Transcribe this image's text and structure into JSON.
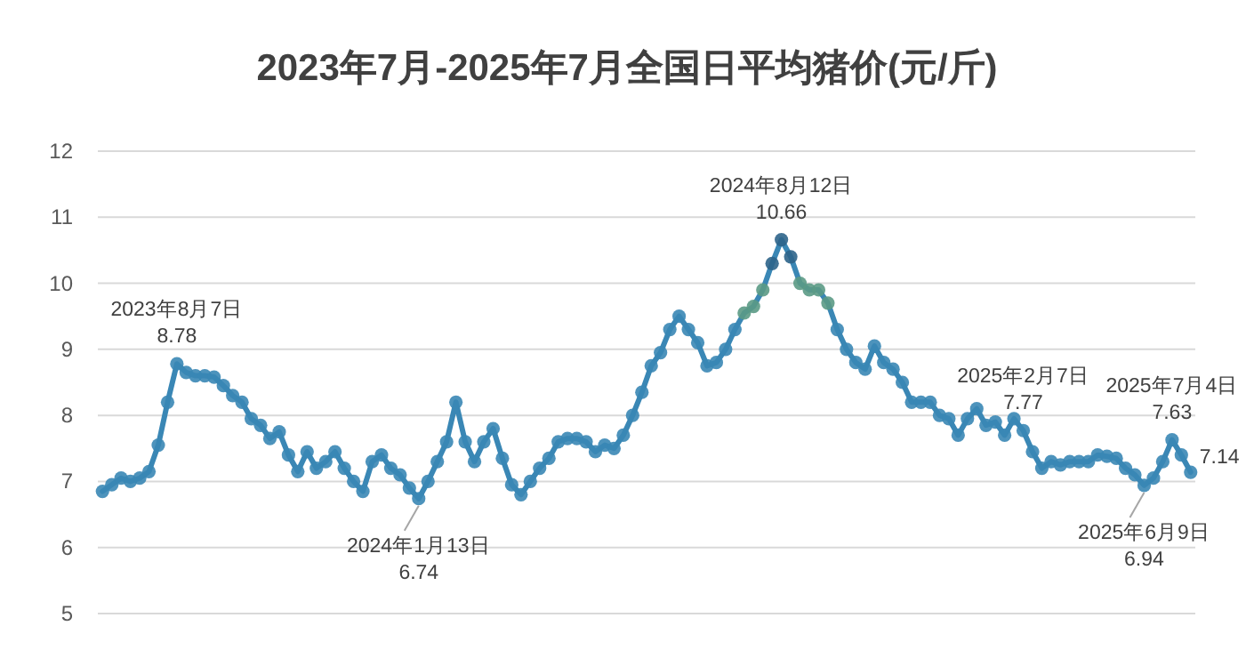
{
  "chart_data": {
    "type": "line",
    "line_style": "solid",
    "title": "2023年7月-2025年7月全国日平均猪价(元/斤)",
    "marker": "circle",
    "grid": "y",
    "tick_labels": "y",
    "categories": [
      null,
      null,
      null,
      null,
      null,
      null,
      null,
      null,
      null,
      null,
      null,
      null,
      null,
      null,
      null,
      null,
      null,
      null,
      null,
      null,
      null,
      null,
      null,
      null,
      null,
      null,
      null,
      null,
      null,
      null,
      null,
      null,
      null,
      null,
      null,
      null,
      null,
      null,
      null,
      null,
      null,
      null,
      null,
      null,
      null,
      null,
      null,
      null,
      null,
      null,
      null,
      null,
      null,
      null,
      null,
      null,
      null,
      null,
      null,
      null,
      null,
      null,
      null,
      null,
      null,
      null,
      null,
      null,
      null,
      null,
      null,
      null,
      null,
      null,
      null,
      null,
      null,
      null,
      null,
      null,
      null,
      null,
      null,
      null,
      null,
      null,
      null,
      null,
      null,
      null,
      null,
      null,
      null,
      null,
      null,
      null,
      null,
      null,
      null,
      null,
      null,
      null,
      null,
      null,
      null,
      null,
      null,
      null,
      null,
      null,
      null,
      null,
      null,
      null,
      null,
      null,
      null,
      null
    ],
    "ylim": [
      5,
      12
    ],
    "yticks": [
      5,
      6,
      7,
      8,
      9,
      10,
      11,
      12
    ],
    "series": [
      {
        "color": "#3a87b5",
        "values": [
          6.85,
          6.95,
          7.05,
          7.0,
          7.05,
          7.15,
          7.55,
          8.2,
          8.78,
          8.65,
          8.6,
          8.6,
          8.58,
          8.45,
          8.3,
          8.2,
          7.95,
          7.85,
          7.65,
          7.75,
          7.4,
          7.15,
          7.45,
          7.2,
          7.3,
          7.45,
          7.2,
          7.0,
          6.85,
          7.3,
          7.4,
          7.2,
          7.1,
          6.9,
          6.74,
          7.0,
          7.3,
          7.6,
          8.2,
          7.6,
          7.3,
          7.6,
          7.8,
          7.35,
          6.95,
          6.8,
          7.0,
          7.2,
          7.35,
          7.6,
          7.65,
          7.65,
          7.6,
          7.45,
          7.55,
          7.5,
          7.7,
          8.0,
          8.35,
          8.75,
          8.95,
          9.3,
          9.5,
          9.3,
          9.1,
          8.75,
          8.8,
          9.0,
          9.3,
          9.55,
          9.65,
          9.9,
          10.3,
          10.66,
          10.4,
          10.0,
          9.9,
          9.9,
          9.7,
          9.3,
          9.0,
          8.8,
          8.7,
          9.05,
          8.8,
          8.7,
          8.5,
          8.2,
          8.2,
          8.2,
          8.0,
          7.95,
          7.7,
          7.95,
          8.1,
          7.85,
          7.9,
          7.7,
          7.95,
          7.77,
          7.45,
          7.2,
          7.3,
          7.25,
          7.3,
          7.3,
          7.3,
          7.4,
          7.38,
          7.35,
          7.2,
          7.1,
          6.94,
          7.05,
          7.3,
          7.63,
          7.4,
          7.14
        ],
        "value_labels": [
          null,
          null,
          null,
          null,
          null,
          null,
          null,
          null,
          null,
          null,
          null,
          null,
          null,
          null,
          null,
          null,
          null,
          null,
          null,
          null,
          null,
          null,
          null,
          null,
          null,
          null,
          null,
          null,
          null,
          null,
          null,
          null,
          null,
          null,
          null,
          null,
          null,
          null,
          null,
          null,
          null,
          null,
          null,
          null,
          null,
          null,
          null,
          null,
          null,
          null,
          null,
          null,
          null,
          null,
          null,
          null,
          null,
          null,
          null,
          null,
          null,
          null,
          null,
          null,
          null,
          null,
          null,
          null,
          null,
          null,
          null,
          null,
          null,
          null,
          null,
          null,
          null,
          null,
          null,
          null,
          null,
          null,
          null,
          null,
          null,
          null,
          null,
          null,
          null,
          null,
          null,
          null,
          null,
          null,
          null,
          null,
          null,
          null,
          null,
          null,
          null,
          null,
          null,
          null,
          null,
          null,
          null,
          null,
          null,
          null,
          null,
          null,
          null,
          null,
          null,
          null,
          null,
          "7.14"
        ],
        "colors": [
          "#3a87b5",
          "#3a87b5",
          "#3a87b5",
          "#3a87b5",
          "#3a87b5",
          "#3a87b5",
          "#3a87b5",
          "#3a87b5",
          "#3a87b5",
          "#3a87b5",
          "#3a87b5",
          "#3a87b5",
          "#3a87b5",
          "#3a87b5",
          "#3a87b5",
          "#3a87b5",
          "#3a87b5",
          "#3a87b5",
          "#3a87b5",
          "#3a87b5",
          "#3a87b5",
          "#3a87b5",
          "#3a87b5",
          "#3a87b5",
          "#3a87b5",
          "#3a87b5",
          "#3a87b5",
          "#3a87b5",
          "#3a87b5",
          "#3a87b5",
          "#3a87b5",
          "#3a87b5",
          "#3a87b5",
          "#3a87b5",
          "#3a87b5",
          "#3a87b5",
          "#3a87b5",
          "#3a87b5",
          "#3a87b5",
          "#3a87b5",
          "#3a87b5",
          "#3a87b5",
          "#3a87b5",
          "#3a87b5",
          "#3a87b5",
          "#3a87b5",
          "#3a87b5",
          "#3a87b5",
          "#3a87b5",
          "#3a87b5",
          "#3a87b5",
          "#3a87b5",
          "#3a87b5",
          "#3a87b5",
          "#3a87b5",
          "#3a87b5",
          "#3a87b5",
          "#3a87b5",
          "#3a87b5",
          "#3a87b5",
          "#3a87b5",
          "#3a87b5",
          "#3a87b5",
          "#3a87b5",
          "#3a87b5",
          "#3a87b5",
          "#3a87b5",
          "#3a87b5",
          "#3a87b5",
          "#5b9a85",
          "#5b9a85",
          "#5b9a85",
          "#2d6489",
          "#2d6489",
          "#2d6489",
          "#5b9a85",
          "#5b9a85",
          "#5b9a85",
          "#5b9a85",
          "#3a87b5",
          "#3a87b5",
          "#3a87b5",
          "#3a87b5",
          "#3a87b5",
          "#3a87b5",
          "#3a87b5",
          "#3a87b5",
          "#3a87b5",
          "#3a87b5",
          "#3a87b5",
          "#3a87b5",
          "#3a87b5",
          "#3a87b5",
          "#3a87b5",
          "#3a87b5",
          "#3a87b5",
          "#3a87b5",
          "#3a87b5",
          "#3a87b5",
          "#3a87b5",
          "#3a87b5",
          "#3a87b5",
          "#3a87b5",
          "#3a87b5",
          "#3a87b5",
          "#3a87b5",
          "#3a87b5",
          "#3a87b5",
          "#3a87b5",
          "#3a87b5",
          "#3a87b5",
          "#3a87b5",
          "#3a87b5",
          "#3a87b5",
          "#3a87b5",
          "#3a87b5",
          "#3a87b5",
          "#3a87b5"
        ]
      }
    ],
    "annotations": [
      {
        "text": "2023年8月7日\n8.78",
        "y": 8.78
      },
      {
        "text": "2024年1月13日\n6.74",
        "y": 6.74
      },
      {
        "text": "2024年8月12日\n10.66",
        "y": 10.66
      },
      {
        "text": "2025年2月7日\n7.77",
        "y": 7.77
      },
      {
        "text": "2025年6月9日\n6.94",
        "y": 6.94
      },
      {
        "text": "2025年7月4日\n7.63",
        "y": 7.63
      }
    ]
  }
}
